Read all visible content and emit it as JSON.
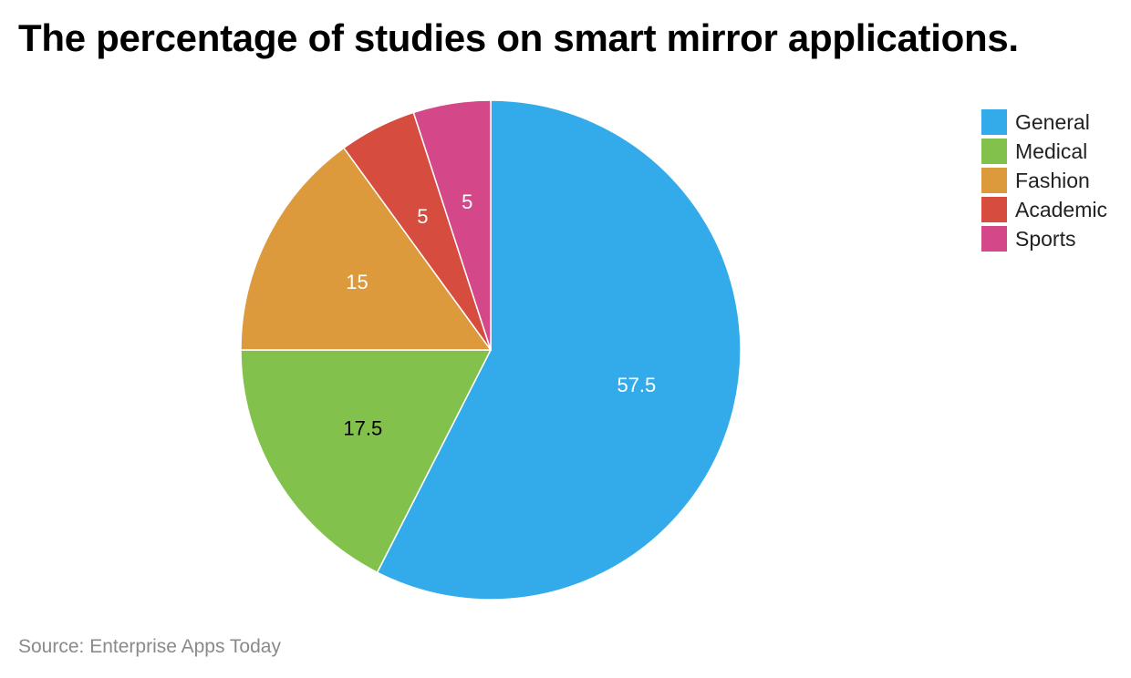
{
  "chart_data": {
    "type": "pie",
    "title": "The percentage of studies on smart mirror applications.",
    "categories": [
      "General",
      "Medical",
      "Fashion",
      "Academic",
      "Sports"
    ],
    "values": [
      57.5,
      17.5,
      15,
      5,
      5
    ],
    "data_labels": [
      "57.5",
      "17.5",
      "15",
      "5",
      "5"
    ],
    "colors": [
      "#33abea",
      "#82c24c",
      "#dd9a3d",
      "#d64c3e",
      "#d4488a"
    ],
    "label_colors": [
      "#ffffff",
      "#000000",
      "#ffffff",
      "#ffffff",
      "#ffffff"
    ],
    "start_angle": "12 o'clock",
    "direction": "clockwise",
    "legend_position": "top-right"
  },
  "source": "Source: Enterprise Apps Today"
}
